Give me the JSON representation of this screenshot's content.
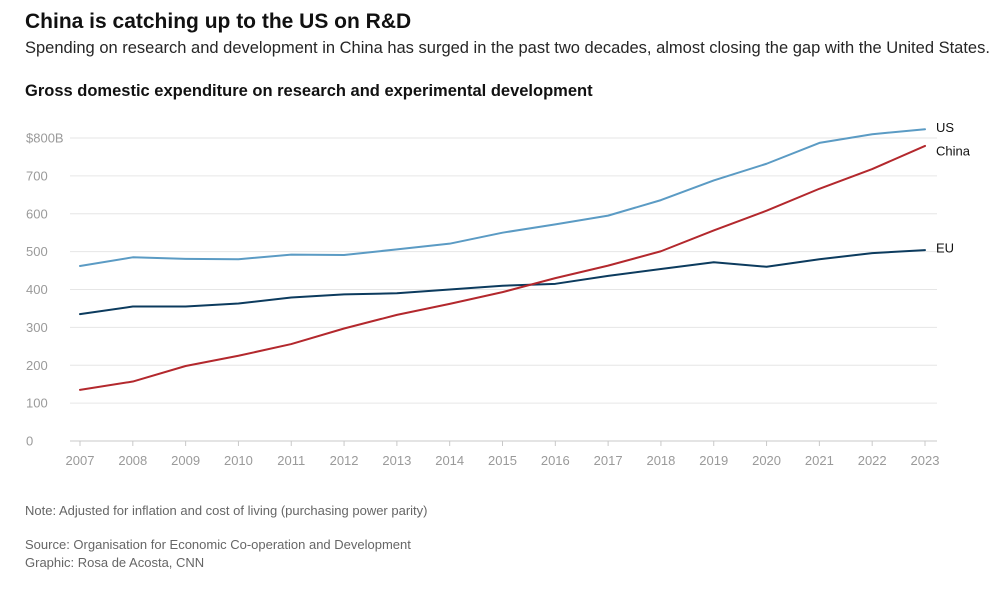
{
  "header": {
    "title": "China is catching up to the US on R&D",
    "subtitle": "Spending on research and development in China has surged in the past two decades, almost closing the gap with the United States."
  },
  "chart_data": {
    "type": "line",
    "title": "Gross domestic expenditure on research and experimental development",
    "xlabel": "",
    "ylabel": "",
    "x": [
      2007,
      2008,
      2009,
      2010,
      2011,
      2012,
      2013,
      2014,
      2015,
      2016,
      2017,
      2018,
      2019,
      2020,
      2021,
      2022,
      2023
    ],
    "x_tick_labels": [
      "2007",
      "2008",
      "2009",
      "2010",
      "2011",
      "2012",
      "2013",
      "2014",
      "2015",
      "2016",
      "2017",
      "2018",
      "2019",
      "2020",
      "2021",
      "2022",
      "2023"
    ],
    "ylim": [
      0,
      800
    ],
    "y_ticks": [
      0,
      100,
      200,
      300,
      400,
      500,
      600,
      700,
      800
    ],
    "y_tick_labels": [
      "0",
      "100",
      "200",
      "300",
      "400",
      "500",
      "600",
      "700",
      "$800B"
    ],
    "grid": true,
    "series": [
      {
        "name": "US",
        "color": "#5b9bc4",
        "values": [
          462,
          485,
          481,
          480,
          492,
          491,
          506,
          521,
          550,
          572,
          595,
          636,
          688,
          732,
          787,
          810,
          823
        ]
      },
      {
        "name": "China",
        "color": "#b3282d",
        "values": [
          135,
          157,
          198,
          225,
          256,
          297,
          333,
          362,
          393,
          430,
          463,
          501,
          556,
          608,
          666,
          718,
          779
        ]
      },
      {
        "name": "EU",
        "color": "#0c3b5e",
        "values": [
          335,
          355,
          355,
          363,
          379,
          387,
          390,
          400,
          410,
          415,
          436,
          454,
          472,
          460,
          480,
          496,
          504
        ]
      }
    ]
  },
  "footer": {
    "note": "Note: Adjusted for inflation and cost of living (purchasing power parity)",
    "source": "Source: Organisation for Economic Co-operation and Development",
    "credit": "Graphic: Rosa de Acosta, CNN"
  }
}
